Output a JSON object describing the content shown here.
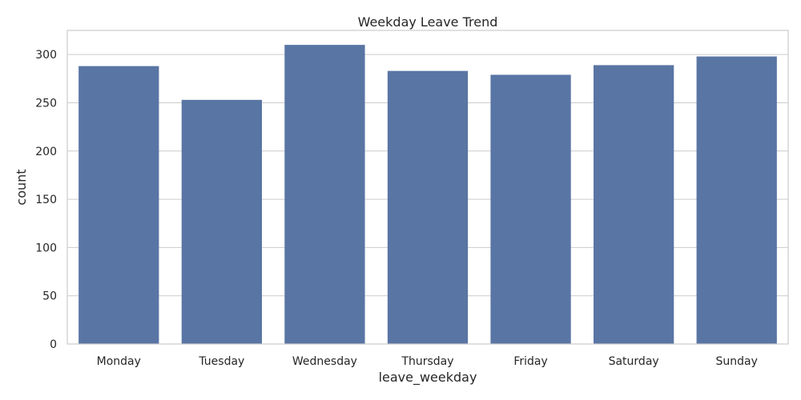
{
  "chart_data": {
    "type": "bar",
    "title": "Weekday Leave Trend",
    "xlabel": "leave_weekday",
    "ylabel": "count",
    "categories": [
      "Monday",
      "Tuesday",
      "Wednesday",
      "Thursday",
      "Friday",
      "Saturday",
      "Sunday"
    ],
    "values": [
      288,
      253,
      310,
      283,
      279,
      289,
      298
    ],
    "ylim": [
      0,
      325
    ],
    "yticks": [
      0,
      50,
      100,
      150,
      200,
      250,
      300
    ],
    "grid": true,
    "bar_color": "#5975a4"
  }
}
